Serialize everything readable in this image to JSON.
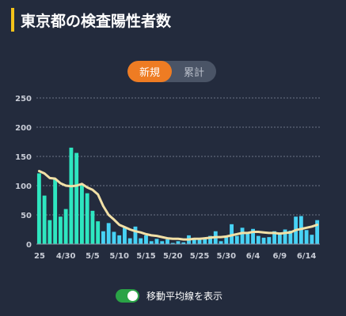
{
  "header": {
    "title": "東京都の検査陽性者数"
  },
  "toggle": {
    "options": [
      "新規",
      "累計"
    ],
    "active_index": 0
  },
  "footer": {
    "moving_average_label": "移動平均線を表示",
    "moving_average_on": true
  },
  "colors": {
    "bar_early": "#2ee6c0",
    "bar_late": "#47d2f5",
    "moving_average": "#f2e0a6",
    "grid": "#6c7488",
    "axis_text": "#c8ccd6",
    "accent": "#ee7c23",
    "title_accent": "#f3c21a"
  },
  "chart_data": {
    "type": "bar",
    "ylim": [
      0,
      250
    ],
    "yticks": [
      0,
      50,
      100,
      150,
      200,
      250
    ],
    "grid": true,
    "x_tick_labels": [
      {
        "index": 0,
        "label": "25"
      },
      {
        "index": 5,
        "label": "4/30"
      },
      {
        "index": 10,
        "label": "5/5"
      },
      {
        "index": 15,
        "label": "5/10"
      },
      {
        "index": 20,
        "label": "5/15"
      },
      {
        "index": 25,
        "label": "5/20"
      },
      {
        "index": 30,
        "label": "5/25"
      },
      {
        "index": 35,
        "label": "5/30"
      },
      {
        "index": 40,
        "label": "6/4"
      },
      {
        "index": 45,
        "label": "6/9"
      },
      {
        "index": 50,
        "label": "6/14"
      }
    ],
    "early_series_count": 12,
    "values": [
      121,
      83,
      41,
      112,
      47,
      60,
      165,
      156,
      102,
      87,
      57,
      39,
      22,
      36,
      21,
      15,
      28,
      10,
      30,
      10,
      15,
      5,
      9,
      5,
      8,
      2,
      5,
      3,
      15,
      10,
      8,
      11,
      14,
      22,
      5,
      13,
      34,
      14,
      28,
      20,
      26,
      14,
      11,
      12,
      22,
      20,
      25,
      23,
      47,
      48,
      24,
      16,
      41
    ],
    "moving_average": [
      125,
      121,
      113,
      112,
      104,
      100,
      99,
      100,
      103,
      97,
      93,
      85,
      65,
      50,
      42,
      33,
      29,
      25,
      22,
      20,
      17,
      15,
      14,
      12,
      10,
      9,
      9,
      8,
      8,
      9,
      9,
      10,
      11,
      12,
      12,
      13,
      15,
      17,
      19,
      19,
      21,
      21,
      20,
      19,
      19,
      18,
      19,
      20,
      24,
      26,
      28,
      30,
      33
    ]
  }
}
